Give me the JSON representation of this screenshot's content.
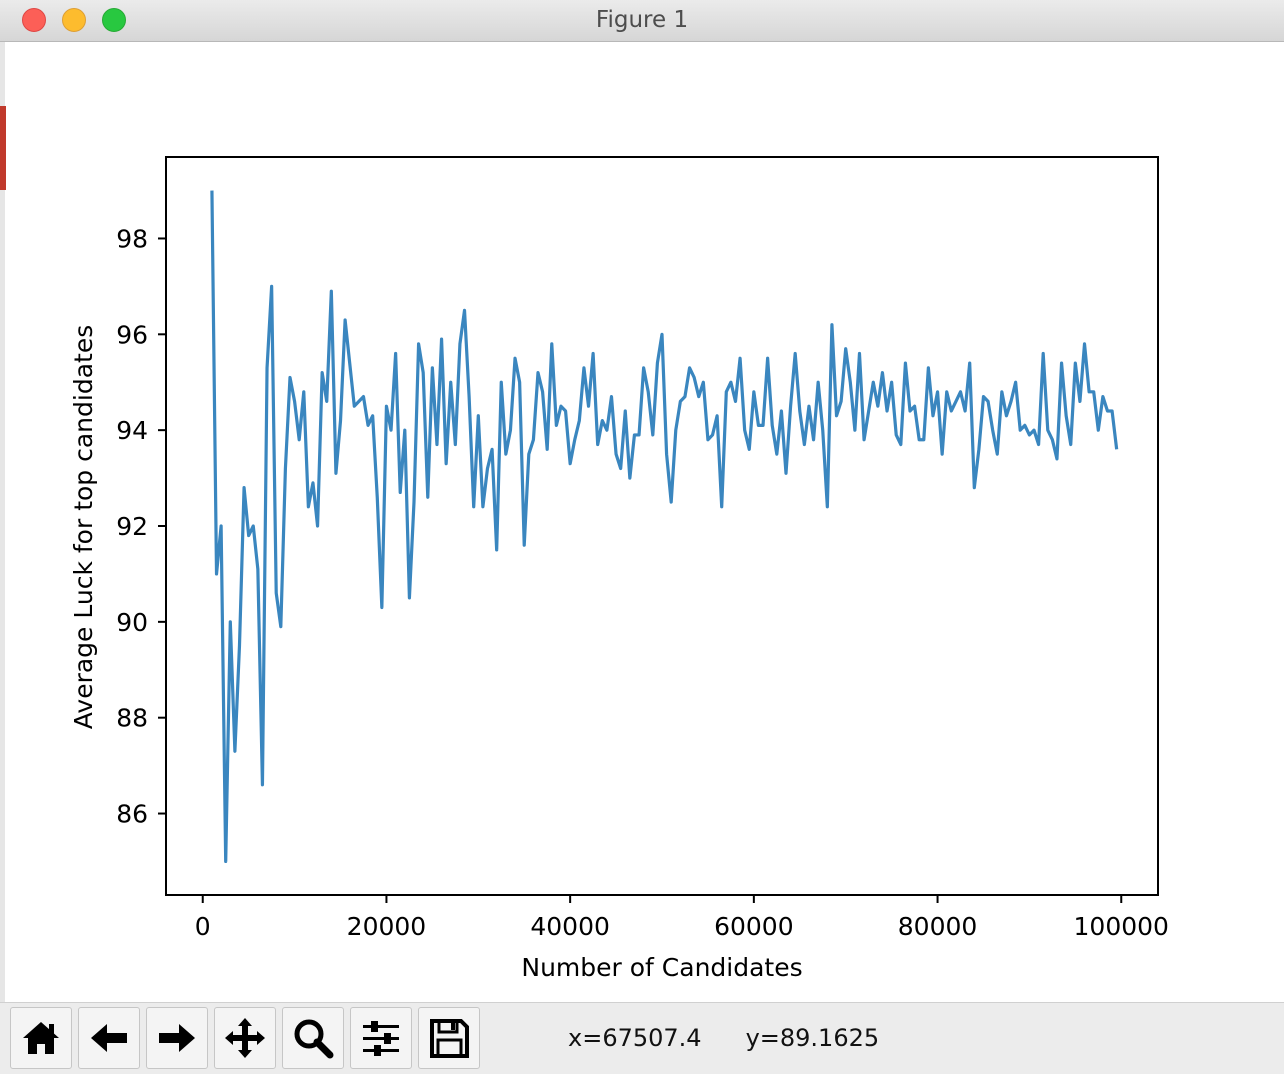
{
  "window": {
    "title": "Figure 1"
  },
  "toolbar": {
    "buttons": [
      {
        "name": "home-button",
        "icon": "home-icon"
      },
      {
        "name": "back-button",
        "icon": "arrow-left-icon"
      },
      {
        "name": "forward-button",
        "icon": "arrow-right-icon"
      },
      {
        "name": "pan-button",
        "icon": "move-icon"
      },
      {
        "name": "zoom-button",
        "icon": "magnifier-icon"
      },
      {
        "name": "configure-subplots-button",
        "icon": "sliders-icon"
      },
      {
        "name": "save-button",
        "icon": "floppy-disk-icon"
      }
    ],
    "x_readout": "x=67507.4",
    "y_readout": "y=89.1625"
  },
  "chart_data": {
    "type": "line",
    "title": "",
    "xlabel": "Number of Candidates",
    "ylabel": "Average Luck for top candidates",
    "xlim": [
      -4000,
      104000
    ],
    "ylim": [
      84.3,
      99.7
    ],
    "xticks": [
      0,
      20000,
      40000,
      60000,
      80000,
      100000
    ],
    "yticks": [
      86,
      88,
      90,
      92,
      94,
      96,
      98
    ],
    "grid": false,
    "color": "#3a86bf",
    "x": [
      1000,
      1500,
      2000,
      2500,
      3000,
      3500,
      4000,
      4500,
      5000,
      5500,
      6000,
      6500,
      7000,
      7500,
      8000,
      8500,
      9000,
      9500,
      10000,
      10500,
      11000,
      11500,
      12000,
      12500,
      13000,
      13500,
      14000,
      14500,
      15000,
      15500,
      16000,
      16500,
      17000,
      17500,
      18000,
      18500,
      19000,
      19500,
      20000,
      20500,
      21000,
      21500,
      22000,
      22500,
      23000,
      23500,
      24000,
      24500,
      25000,
      25500,
      26000,
      26500,
      27000,
      27500,
      28000,
      28500,
      29000,
      29500,
      30000,
      30500,
      31000,
      31500,
      32000,
      32500,
      33000,
      33500,
      34000,
      34500,
      35000,
      35500,
      36000,
      36500,
      37000,
      37500,
      38000,
      38500,
      39000,
      39500,
      40000,
      40500,
      41000,
      41500,
      42000,
      42500,
      43000,
      43500,
      44000,
      44500,
      45000,
      45500,
      46000,
      46500,
      47000,
      47500,
      48000,
      48500,
      49000,
      49500,
      50000,
      50500,
      51000,
      51500,
      52000,
      52500,
      53000,
      53500,
      54000,
      54500,
      55000,
      55500,
      56000,
      56500,
      57000,
      57500,
      58000,
      58500,
      59000,
      59500,
      60000,
      60500,
      61000,
      61500,
      62000,
      62500,
      63000,
      63500,
      64000,
      64500,
      65000,
      65500,
      66000,
      66500,
      67000,
      67500,
      68000,
      68500,
      69000,
      69500,
      70000,
      70500,
      71000,
      71500,
      72000,
      72500,
      73000,
      73500,
      74000,
      74500,
      75000,
      75500,
      76000,
      76500,
      77000,
      77500,
      78000,
      78500,
      79000,
      79500,
      80000,
      80500,
      81000,
      81500,
      82000,
      82500,
      83000,
      83500,
      84000,
      84500,
      85000,
      85500,
      86000,
      86500,
      87000,
      87500,
      88000,
      88500,
      89000,
      89500,
      90000,
      90500,
      91000,
      91500,
      92000,
      92500,
      93000,
      93500,
      94000,
      94500,
      95000,
      95500,
      96000,
      96500,
      97000,
      97500,
      98000,
      98500,
      99000,
      99500
    ],
    "y": [
      99.0,
      91.0,
      92.0,
      85.0,
      90.0,
      87.3,
      89.5,
      92.8,
      91.8,
      92.0,
      91.1,
      86.6,
      95.3,
      97.0,
      90.6,
      89.9,
      93.2,
      95.1,
      94.6,
      93.8,
      94.8,
      92.4,
      92.9,
      92.0,
      95.2,
      94.6,
      96.9,
      93.1,
      94.2,
      96.3,
      95.4,
      94.5,
      94.6,
      94.7,
      94.1,
      94.3,
      92.6,
      90.3,
      94.5,
      94.0,
      95.6,
      92.7,
      94.0,
      90.5,
      92.5,
      95.8,
      95.2,
      92.6,
      95.3,
      93.7,
      95.9,
      93.3,
      95.0,
      93.7,
      95.8,
      96.5,
      94.7,
      92.4,
      94.3,
      92.4,
      93.2,
      93.6,
      91.5,
      95.0,
      93.5,
      94.0,
      95.5,
      95.0,
      91.6,
      93.5,
      93.8,
      95.2,
      94.8,
      93.6,
      95.8,
      94.1,
      94.5,
      94.4,
      93.3,
      93.8,
      94.2,
      95.3,
      94.5,
      95.6,
      93.7,
      94.2,
      94.0,
      94.7,
      93.5,
      93.2,
      94.4,
      93.0,
      93.9,
      93.9,
      95.3,
      94.8,
      93.9,
      95.4,
      96.0,
      93.5,
      92.5,
      94.0,
      94.6,
      94.7,
      95.3,
      95.1,
      94.7,
      95.0,
      93.8,
      93.9,
      94.3,
      92.4,
      94.8,
      95.0,
      94.6,
      95.5,
      94.0,
      93.6,
      94.8,
      94.1,
      94.1,
      95.5,
      94.1,
      93.5,
      94.4,
      93.1,
      94.5,
      95.6,
      94.4,
      93.7,
      94.5,
      93.8,
      95.0,
      94.0,
      92.4,
      96.2,
      94.3,
      94.6,
      95.7,
      95.0,
      94.0,
      95.6,
      93.8,
      94.4,
      95.0,
      94.5,
      95.2,
      94.4,
      95.0,
      93.9,
      93.7,
      95.4,
      94.4,
      94.5,
      93.8,
      93.8,
      95.3,
      94.3,
      94.8,
      93.5,
      94.8,
      94.4,
      94.6,
      94.8,
      94.4,
      95.4,
      92.8,
      93.6,
      94.7,
      94.6,
      94.0,
      93.5,
      94.8,
      94.3,
      94.6,
      95.0,
      94.0,
      94.1,
      93.9,
      94.0,
      93.7,
      95.6,
      94.0,
      93.8,
      93.4,
      95.4,
      94.3,
      93.7,
      95.4,
      94.6,
      95.8,
      94.8,
      94.8,
      94.0,
      94.7,
      94.4,
      94.4,
      93.6
    ]
  }
}
